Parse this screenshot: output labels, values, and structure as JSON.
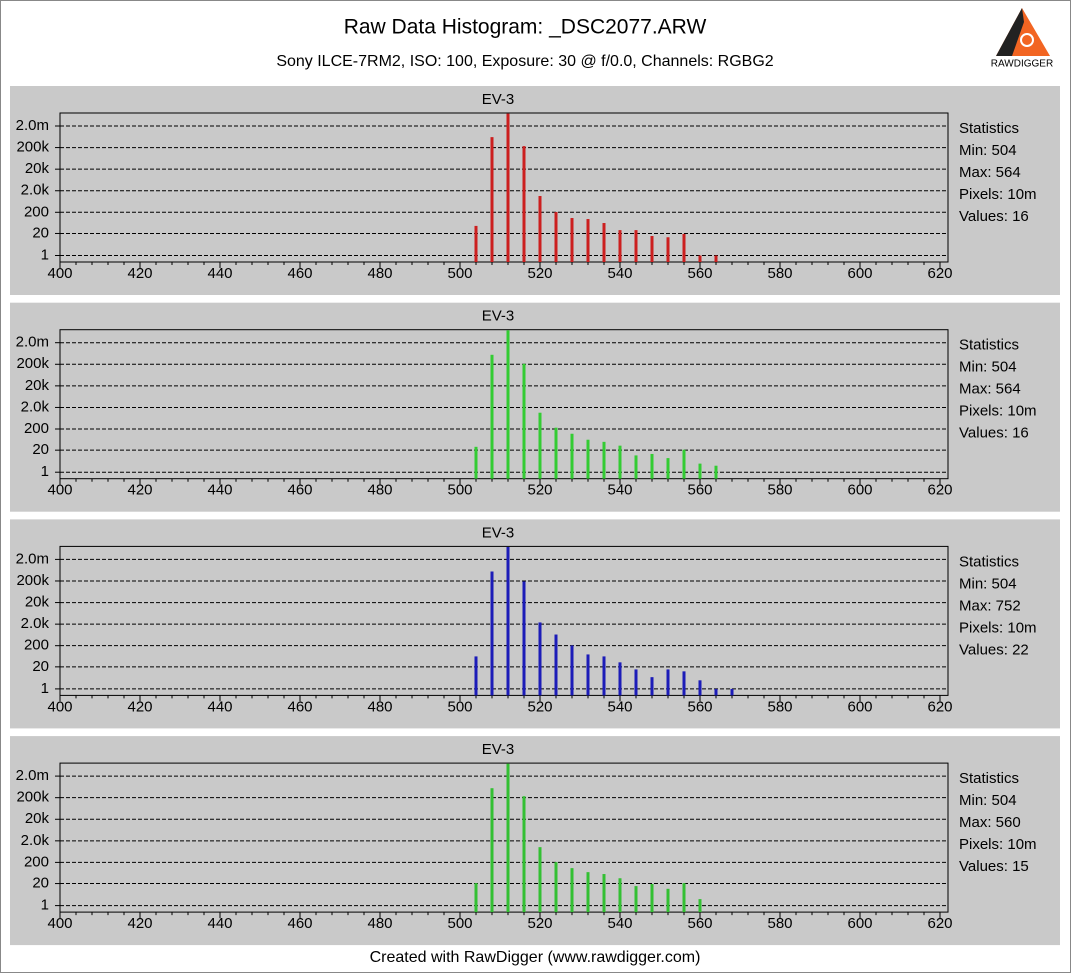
{
  "title": "Raw Data Histogram: _DSC2077.ARW",
  "subtitle": "Sony ILCE-7RM2, ISO: 100, Exposure: 30 @ f/0.0, Channels: RGBG2",
  "footer": "Created with RawDigger (www.rawdigger.com)",
  "logo": "RAWDIGGER",
  "chart_data": [
    {
      "type": "bar",
      "title": "EV-3",
      "color": "#cc1f1f",
      "yscale": "log",
      "grid": true,
      "x": [
        504,
        508,
        512,
        516,
        520,
        524,
        528,
        532,
        536,
        540,
        544,
        548,
        552,
        556,
        560,
        564
      ],
      "values": [
        46,
        610000,
        7500000,
        234000,
        1140,
        205,
        108,
        97,
        63,
        29,
        29,
        15,
        13,
        19,
        1,
        1
      ],
      "xlim": [
        400,
        620
      ],
      "xticks": [
        400,
        420,
        440,
        460,
        480,
        500,
        520,
        540,
        560,
        580,
        600,
        620
      ],
      "ylim": [
        0,
        8000000
      ],
      "yticks": [
        1,
        20,
        200,
        {
          "value": 2000,
          "label": "2.0k"
        },
        {
          "value": 20000,
          "label": "20k"
        },
        {
          "value": 200000,
          "label": "200k"
        },
        {
          "value": 2000000,
          "label": "2.0m"
        }
      ],
      "stats": [
        "Statistics",
        "Min: 504",
        "Max: 564",
        "Pixels: 10m",
        "Values: 16"
      ]
    },
    {
      "type": "bar",
      "title": "EV-3",
      "color": "#33cc33",
      "yscale": "log",
      "grid": true,
      "x": [
        504,
        508,
        512,
        516,
        520,
        524,
        528,
        532,
        536,
        540,
        544,
        548,
        552,
        556,
        560,
        564
      ],
      "values": [
        29,
        550000,
        7500000,
        210000,
        1140,
        230,
        120,
        63,
        50,
        33,
        11,
        13,
        8,
        21,
        4,
        3
      ],
      "xlim": [
        400,
        620
      ],
      "xticks": [
        400,
        420,
        440,
        460,
        480,
        500,
        520,
        540,
        560,
        580,
        600,
        620
      ],
      "ylim": [
        0,
        8000000
      ],
      "yticks": [
        1,
        20,
        200,
        {
          "value": 2000,
          "label": "2.0k"
        },
        {
          "value": 20000,
          "label": "20k"
        },
        {
          "value": 200000,
          "label": "200k"
        },
        {
          "value": 2000000,
          "label": "2.0m"
        }
      ],
      "stats": [
        "Statistics",
        "Min: 504",
        "Max: 564",
        "Pixels: 10m",
        "Values: 16"
      ]
    },
    {
      "type": "bar",
      "title": "EV-3",
      "color": "#1c1cb8",
      "yscale": "log",
      "grid": true,
      "x": [
        504,
        508,
        512,
        516,
        520,
        524,
        528,
        532,
        536,
        540,
        544,
        548,
        552,
        556,
        560,
        564,
        568
      ],
      "values": [
        63,
        550000,
        7500000,
        190000,
        2400,
        660,
        205,
        78,
        63,
        33,
        15,
        6,
        15,
        12,
        4,
        1,
        1
      ],
      "xlim": [
        400,
        620
      ],
      "xticks": [
        400,
        420,
        440,
        460,
        480,
        500,
        520,
        540,
        560,
        580,
        600,
        620
      ],
      "ylim": [
        0,
        8000000
      ],
      "yticks": [
        1,
        20,
        200,
        {
          "value": 2000,
          "label": "2.0k"
        },
        {
          "value": 20000,
          "label": "20k"
        },
        {
          "value": 200000,
          "label": "200k"
        },
        {
          "value": 2000000,
          "label": "2.0m"
        }
      ],
      "stats": [
        "Statistics",
        "Min: 504",
        "Max: 752",
        "Pixels: 10m",
        "Values: 22"
      ]
    },
    {
      "type": "bar",
      "title": "EV-3",
      "color": "#33c033",
      "yscale": "log",
      "grid": true,
      "x": [
        504,
        508,
        512,
        516,
        520,
        524,
        528,
        532,
        536,
        540,
        544,
        548,
        552,
        556,
        560
      ],
      "values": [
        21,
        550000,
        7500000,
        234000,
        1020,
        205,
        108,
        70,
        57,
        36,
        15,
        19,
        11,
        21,
        3
      ],
      "xlim": [
        400,
        620
      ],
      "xticks": [
        400,
        420,
        440,
        460,
        480,
        500,
        520,
        540,
        560,
        580,
        600,
        620
      ],
      "ylim": [
        0,
        8000000
      ],
      "yticks": [
        1,
        20,
        200,
        {
          "value": 2000,
          "label": "2.0k"
        },
        {
          "value": 20000,
          "label": "20k"
        },
        {
          "value": 200000,
          "label": "200k"
        },
        {
          "value": 2000000,
          "label": "2.0m"
        }
      ],
      "stats": [
        "Statistics",
        "Min: 504",
        "Max: 560",
        "Pixels: 10m",
        "Values: 15"
      ]
    }
  ]
}
